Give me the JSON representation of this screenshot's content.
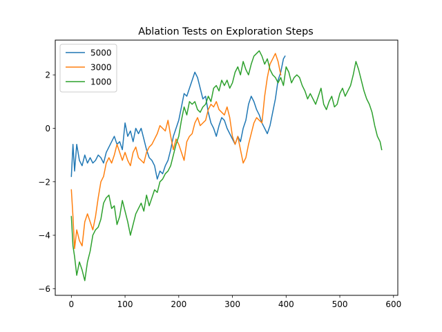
{
  "chart_data": {
    "type": "line",
    "title": "Ablation Tests on Exploration Steps",
    "xlabel": "",
    "ylabel": "",
    "xlim": [
      -30,
      608
    ],
    "ylim": [
      -6.25,
      3.3
    ],
    "xticks": [
      0,
      100,
      200,
      300,
      400,
      500,
      600
    ],
    "yticks": [
      -6,
      -4,
      -2,
      0,
      2
    ],
    "grid": false,
    "legend_position": "top-left",
    "series": [
      {
        "name": "5000",
        "color": "#1f77b4",
        "x": [
          0,
          3,
          6,
          10,
          15,
          20,
          25,
          30,
          35,
          40,
          45,
          50,
          55,
          60,
          65,
          70,
          75,
          80,
          85,
          90,
          95,
          100,
          105,
          110,
          115,
          120,
          125,
          130,
          135,
          140,
          145,
          150,
          155,
          160,
          165,
          170,
          175,
          180,
          185,
          190,
          195,
          200,
          205,
          210,
          215,
          220,
          225,
          230,
          235,
          240,
          245,
          250,
          255,
          260,
          265,
          270,
          275,
          280,
          285,
          290,
          295,
          300,
          305,
          310,
          315,
          320,
          325,
          330,
          335,
          340,
          345,
          350,
          355,
          360,
          365,
          370,
          375,
          380,
          385,
          390,
          395,
          398
        ],
        "y": [
          -1.8,
          -0.6,
          -1.6,
          -0.6,
          -1.2,
          -1.4,
          -1.0,
          -1.3,
          -1.1,
          -1.3,
          -1.2,
          -1.0,
          -1.1,
          -1.3,
          -0.9,
          -0.7,
          -0.5,
          -0.3,
          -0.6,
          -0.5,
          -0.8,
          0.2,
          -0.3,
          -0.1,
          -0.5,
          0.0,
          -0.2,
          0.0,
          -0.4,
          -0.8,
          -1.1,
          -1.2,
          -1.4,
          -1.9,
          -1.6,
          -1.7,
          -1.4,
          -1.2,
          -0.8,
          -0.3,
          0.0,
          0.3,
          0.8,
          1.3,
          1.2,
          1.5,
          1.8,
          2.1,
          1.9,
          1.5,
          1.1,
          1.2,
          0.6,
          0.2,
          0.0,
          -0.3,
          0.1,
          0.4,
          0.3,
          0.0,
          -0.2,
          -0.4,
          -0.6,
          -0.3,
          -0.5,
          0.0,
          0.3,
          0.9,
          1.2,
          1.0,
          0.7,
          0.5,
          0.2,
          0.0,
          -0.2,
          0.1,
          0.6,
          1.1,
          1.8,
          2.1,
          2.6,
          2.7
        ]
      },
      {
        "name": "3000",
        "color": "#ff7f0e",
        "x": [
          0,
          3,
          6,
          10,
          15,
          20,
          25,
          30,
          35,
          40,
          45,
          50,
          55,
          60,
          65,
          70,
          75,
          80,
          85,
          90,
          95,
          100,
          105,
          110,
          115,
          120,
          125,
          130,
          135,
          140,
          145,
          150,
          155,
          160,
          165,
          170,
          175,
          180,
          185,
          190,
          195,
          200,
          205,
          210,
          215,
          220,
          225,
          230,
          235,
          240,
          245,
          250,
          255,
          260,
          265,
          270,
          275,
          280,
          285,
          290,
          295,
          300,
          305,
          310,
          315,
          320,
          325,
          330,
          335,
          340,
          345,
          350,
          355,
          360,
          365,
          370,
          375,
          380,
          385,
          390
        ],
        "y": [
          -2.3,
          -3.3,
          -4.5,
          -3.8,
          -4.2,
          -4.4,
          -3.5,
          -3.2,
          -3.5,
          -3.8,
          -3.3,
          -2.6,
          -2.0,
          -1.8,
          -1.3,
          -1.1,
          -1.3,
          -1.0,
          -0.6,
          -0.9,
          -1.2,
          -0.9,
          -1.2,
          -1.4,
          -0.9,
          -0.7,
          -1.1,
          -1.2,
          -1.3,
          -0.9,
          -0.7,
          -0.6,
          -0.4,
          -0.2,
          0.1,
          0.0,
          -0.1,
          0.3,
          -0.3,
          -0.8,
          -0.4,
          -0.6,
          -0.9,
          -1.2,
          -0.5,
          -0.3,
          -0.2,
          0.2,
          0.4,
          0.1,
          0.2,
          0.3,
          0.7,
          0.9,
          0.8,
          1.0,
          0.7,
          0.6,
          0.5,
          0.8,
          0.4,
          -0.3,
          -0.6,
          -0.3,
          -0.8,
          -1.3,
          -1.1,
          -0.6,
          -0.2,
          0.2,
          0.4,
          0.3,
          0.2,
          1.2,
          1.9,
          2.4,
          2.6,
          2.8,
          2.5,
          2.0
        ]
      },
      {
        "name": "1000",
        "color": "#2ca02c",
        "x": [
          0,
          3,
          6,
          10,
          15,
          20,
          25,
          30,
          35,
          40,
          45,
          50,
          55,
          60,
          65,
          70,
          75,
          80,
          85,
          90,
          95,
          100,
          105,
          110,
          115,
          120,
          125,
          130,
          135,
          140,
          145,
          150,
          155,
          160,
          165,
          170,
          175,
          180,
          185,
          190,
          195,
          200,
          205,
          210,
          215,
          220,
          225,
          230,
          235,
          240,
          245,
          250,
          255,
          260,
          265,
          270,
          275,
          280,
          285,
          290,
          295,
          300,
          305,
          310,
          315,
          320,
          325,
          330,
          335,
          340,
          345,
          350,
          355,
          360,
          365,
          370,
          375,
          380,
          385,
          390,
          395,
          400,
          405,
          410,
          415,
          420,
          425,
          430,
          435,
          440,
          445,
          450,
          455,
          460,
          465,
          470,
          475,
          480,
          485,
          490,
          495,
          500,
          505,
          510,
          515,
          520,
          525,
          530,
          535,
          540,
          545,
          550,
          555,
          560,
          565,
          570,
          575,
          578
        ],
        "y": [
          -3.3,
          -4.4,
          -4.8,
          -5.5,
          -5.0,
          -5.3,
          -5.7,
          -5.0,
          -4.6,
          -4.0,
          -3.8,
          -3.7,
          -3.4,
          -2.8,
          -2.6,
          -2.5,
          -3.0,
          -2.9,
          -3.6,
          -3.3,
          -2.7,
          -3.1,
          -3.5,
          -4.0,
          -3.6,
          -3.2,
          -3.0,
          -2.8,
          -3.1,
          -2.5,
          -2.9,
          -2.6,
          -2.3,
          -2.4,
          -2.0,
          -1.9,
          -1.7,
          -1.6,
          -1.4,
          -1.0,
          -0.6,
          -0.3,
          0.3,
          0.8,
          0.5,
          1.0,
          0.9,
          1.0,
          0.7,
          0.6,
          0.8,
          0.9,
          1.2,
          1.0,
          1.5,
          1.6,
          1.4,
          1.8,
          1.6,
          1.8,
          1.5,
          1.7,
          2.1,
          2.3,
          2.0,
          2.5,
          2.2,
          2.0,
          2.4,
          2.7,
          2.8,
          2.9,
          2.7,
          2.4,
          2.6,
          2.2,
          2.0,
          1.9,
          1.7,
          1.9,
          1.6,
          2.3,
          2.1,
          1.7,
          1.9,
          2.0,
          1.9,
          1.6,
          1.4,
          1.1,
          1.3,
          1.1,
          0.9,
          1.2,
          1.5,
          0.9,
          0.7,
          1.0,
          1.2,
          0.8,
          0.9,
          1.3,
          1.5,
          1.2,
          1.4,
          1.6,
          2.0,
          2.5,
          2.2,
          1.8,
          1.4,
          1.1,
          0.9,
          0.6,
          0.1,
          -0.3,
          -0.5,
          -0.8
        ]
      }
    ]
  }
}
